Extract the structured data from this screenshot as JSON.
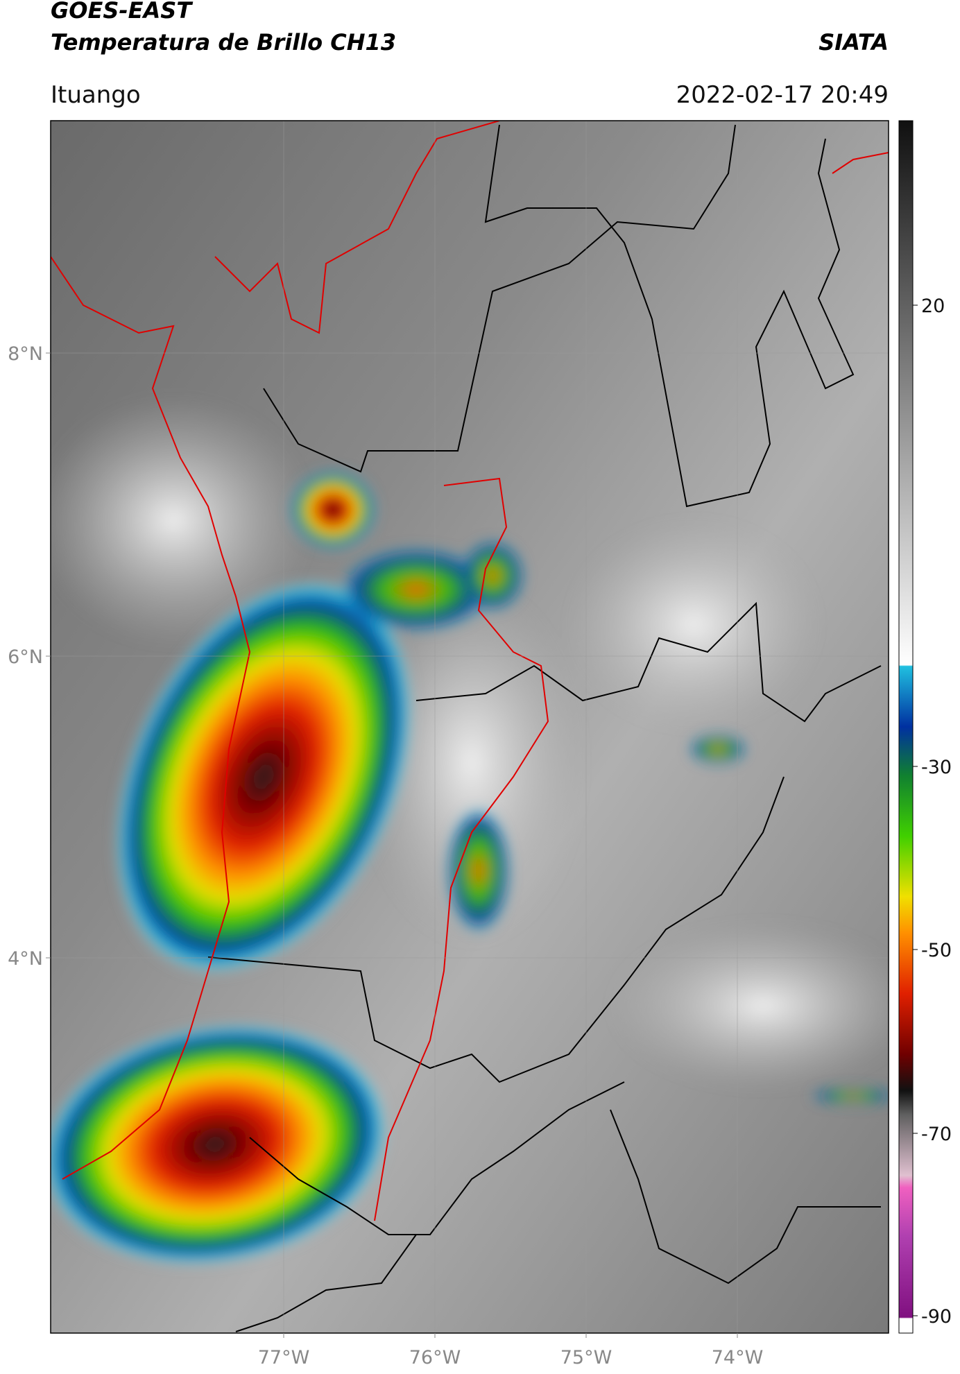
{
  "header": {
    "title_line1": "GOES-EAST",
    "title_line2": "Temperatura de Brillo CH13",
    "source": "SIATA",
    "location": "Ituango",
    "datetime": "2022-02-17 20:49"
  },
  "map": {
    "lat_labels": [
      "8°N",
      "6°N",
      "4°N"
    ],
    "lon_labels": [
      "77°W",
      "76°W",
      "75°W",
      "74°W"
    ]
  },
  "colorbar": {
    "ticks": [
      20,
      -30,
      -50,
      -70,
      -90
    ]
  }
}
